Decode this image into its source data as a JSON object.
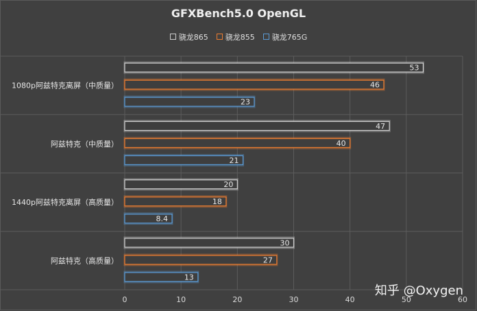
{
  "chart_data": {
    "type": "bar",
    "orientation": "horizontal",
    "title": "GFXBench5.0 OpenGL",
    "categories": [
      "1080p阿兹特克离屏（中质量）",
      "阿兹特克（中质量）",
      "1440p阿兹特克离屏（高质量）",
      "阿兹特克（高质量）"
    ],
    "series": [
      {
        "name": "骁龙865",
        "color": "#cfcfcf",
        "values": [
          53,
          47,
          20,
          30
        ]
      },
      {
        "name": "骁龙855",
        "color": "#ed7d31",
        "values": [
          46,
          40,
          18,
          27
        ]
      },
      {
        "name": "骁龙765G",
        "color": "#5b9bd5",
        "values": [
          23,
          21,
          8.4,
          13
        ]
      }
    ],
    "xlim": [
      0,
      60
    ],
    "xticks": [
      0,
      10,
      20,
      30,
      40,
      50,
      60
    ],
    "grid": true,
    "legend": "top"
  },
  "watermark": "知乎 @Oxygen"
}
